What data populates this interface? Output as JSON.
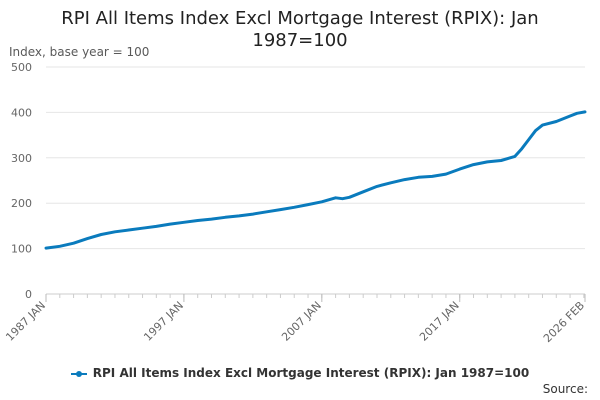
{
  "chart_data": {
    "type": "line",
    "title_lines": [
      "RPI All Items Index Excl Mortgage Interest (RPIX): Jan",
      "1987=100"
    ],
    "ylabel": "Index, base year = 100",
    "ylim": [
      0,
      500
    ],
    "yticks": [
      0,
      100,
      200,
      300,
      400,
      500
    ],
    "xlim": [
      1987.0,
      2026.083
    ],
    "xticks": [
      {
        "label": "1987 JAN",
        "value": 1987.0
      },
      {
        "label": "1997 JAN",
        "value": 1997.0
      },
      {
        "label": "2007 JAN",
        "value": 2007.0
      },
      {
        "label": "2017 JAN",
        "value": 2017.0
      },
      {
        "label": "2026 FEB",
        "value": 2026.083
      }
    ],
    "grid": true,
    "legend_position": "bottom",
    "series": [
      {
        "name": "RPI All Items Index Excl Mortgage Interest (RPIX): Jan 1987=100",
        "color": "#0a7bbd",
        "x": [
          1987.0,
          1988.0,
          1989.0,
          1990.0,
          1991.0,
          1992.0,
          1993.0,
          1994.0,
          1995.0,
          1996.0,
          1997.0,
          1998.0,
          1999.0,
          2000.0,
          2001.0,
          2002.0,
          2003.0,
          2004.0,
          2005.0,
          2006.0,
          2007.0,
          2008.0,
          2008.5,
          2009.0,
          2010.0,
          2011.0,
          2012.0,
          2013.0,
          2014.0,
          2015.0,
          2016.0,
          2017.0,
          2018.0,
          2019.0,
          2020.0,
          2021.0,
          2021.5,
          2022.0,
          2022.5,
          2023.0,
          2024.0,
          2025.0,
          2025.5,
          2026.083
        ],
        "values": [
          101,
          105,
          112,
          122,
          131,
          137,
          141,
          145,
          149,
          154,
          158,
          162,
          165,
          169,
          172,
          176,
          181,
          186,
          191,
          197,
          203,
          212,
          210,
          213,
          225,
          237,
          245,
          252,
          257,
          259,
          264,
          275,
          285,
          291,
          294,
          303,
          320,
          340,
          360,
          372,
          380,
          392,
          398,
          401
        ]
      }
    ]
  },
  "legend_label": "RPI All Items Index Excl Mortgage Interest (RPIX): Jan 1987=100",
  "source_label": "Source:"
}
